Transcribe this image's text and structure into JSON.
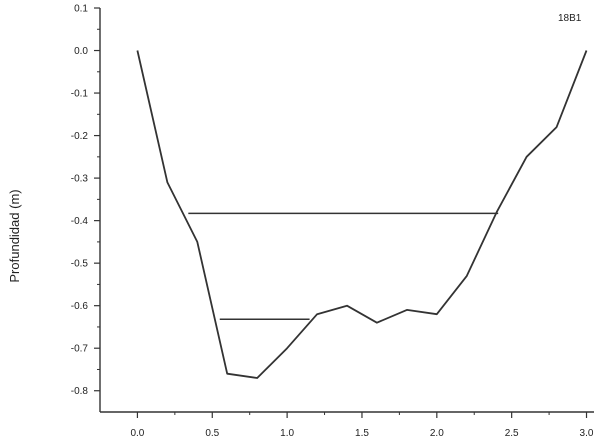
{
  "chart_data": {
    "type": "line",
    "title": "",
    "xlabel": "",
    "ylabel": "Profundidad (m)",
    "corner_label": "18B1",
    "xlim": [
      -0.25,
      3.05
    ],
    "ylim": [
      -0.85,
      0.1
    ],
    "x_ticks": [
      0.0,
      0.5,
      1.0,
      1.5,
      2.0,
      2.5,
      3.0
    ],
    "x_tick_labels": [
      "0.0",
      "0.5",
      "1.0",
      "1.5",
      "2.0",
      "2.5",
      "3.0"
    ],
    "y_ticks": [
      0.1,
      0.0,
      -0.1,
      -0.2,
      -0.3,
      -0.4,
      -0.5,
      -0.6,
      -0.7,
      -0.8
    ],
    "y_tick_labels": [
      "0.1",
      "0.0",
      "-0.1",
      "-0.2",
      "-0.3",
      "-0.4",
      "-0.5",
      "-0.6",
      "-0.7",
      "-0.8"
    ],
    "grid": false,
    "legend": false,
    "line_color": "#333333",
    "series": [
      {
        "name": "",
        "x": [
          0.0,
          0.2,
          0.4,
          0.6,
          0.8,
          1.0,
          1.2,
          1.4,
          1.6,
          1.8,
          2.0,
          2.2,
          2.4,
          2.6,
          2.8,
          3.0
        ],
        "y": [
          0.0,
          -0.31,
          -0.45,
          -0.76,
          -0.77,
          -0.7,
          -0.62,
          -0.6,
          -0.64,
          -0.61,
          -0.62,
          -0.53,
          -0.38,
          -0.25,
          -0.18,
          0.0
        ]
      }
    ],
    "horizontal_segments": [
      {
        "y": -0.383,
        "x_start": 0.34,
        "x_end": 2.41
      },
      {
        "y": -0.632,
        "x_start": 0.55,
        "x_end": 1.15
      }
    ]
  }
}
